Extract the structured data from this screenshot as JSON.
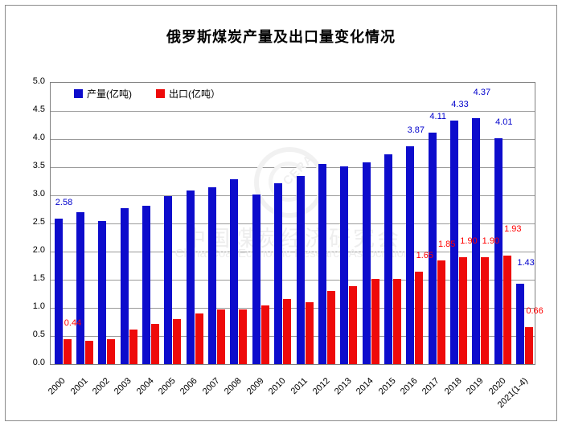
{
  "title": "俄罗斯煤炭产量及出口量变化情况",
  "legend": {
    "items": [
      {
        "label": "产量(亿吨)",
        "color": "#0d0ccc"
      },
      {
        "label": "出口(亿吨）",
        "color": "#ee0a0a"
      }
    ]
  },
  "watermark": {
    "logo_text": "CERA",
    "line1": "中国煤炭经济研究会",
    "line2": "China Coal Economic Research Association"
  },
  "chart_data": {
    "type": "bar",
    "title": "俄罗斯煤炭产量及出口量变化情况",
    "categories": [
      "2000",
      "2001",
      "2002",
      "2003",
      "2004",
      "2005",
      "2006",
      "2007",
      "2008",
      "2009",
      "2010",
      "2011",
      "2012",
      "2013",
      "2014",
      "2015",
      "2016",
      "2017",
      "2018",
      "2019",
      "2020",
      "2021(1-4)"
    ],
    "series": [
      {
        "name": "产量(亿吨)",
        "color": "#0d0ccc",
        "label_color": "#0000cc",
        "values": [
          2.58,
          2.7,
          2.55,
          2.77,
          2.82,
          2.98,
          3.09,
          3.14,
          3.28,
          3.01,
          3.22,
          3.35,
          3.56,
          3.52,
          3.58,
          3.73,
          3.87,
          4.11,
          4.33,
          4.37,
          4.01,
          1.43
        ],
        "labels": {
          "0": "2.58",
          "16": "3.87",
          "17": "4.11",
          "18": "4.33",
          "19": "4.37",
          "20": "4.01",
          "21": "1.43"
        },
        "label_extra_lift": {
          "19": 12,
          "21": 6
        }
      },
      {
        "name": "出口(亿吨）",
        "color": "#ee0a0a",
        "label_color": "#ff0000",
        "values": [
          0.44,
          0.41,
          0.44,
          0.61,
          0.72,
          0.8,
          0.9,
          0.97,
          0.97,
          1.05,
          1.16,
          1.1,
          1.3,
          1.39,
          1.51,
          1.52,
          1.65,
          1.85,
          1.9,
          1.9,
          1.93,
          0.66
        ],
        "labels": {
          "0": "0.44",
          "16": "1.65",
          "17": "1.85",
          "18": "1.90",
          "19": "1.90",
          "20": "1.93",
          "21": "0.66"
        },
        "label_extra_lift": {
          "20": 13
        }
      }
    ],
    "ylim": [
      0,
      5
    ],
    "ytick_step": 0.5,
    "yticks": [
      "5.0",
      "4.5",
      "4.0",
      "3.5",
      "3.0",
      "2.5",
      "2.0",
      "1.5",
      "1.0",
      "0.5",
      "0.0"
    ],
    "grid": true,
    "legend_position": "top-left-inside"
  }
}
